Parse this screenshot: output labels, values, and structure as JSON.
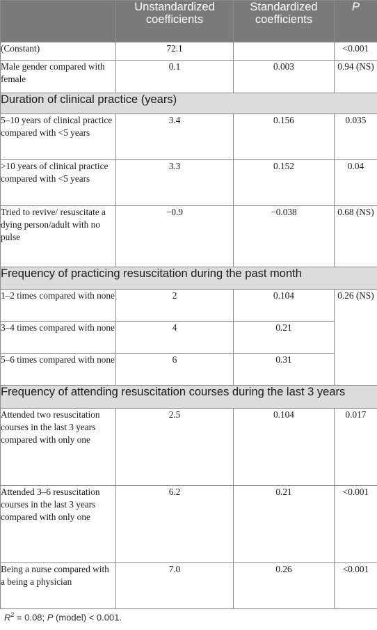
{
  "header": {
    "col1": "",
    "col2": "Unstandardized coefficients",
    "col3": "Standardized coefficients",
    "col4": "P"
  },
  "rows": {
    "constant": {
      "label": "(Constant)",
      "unstd": "72.1",
      "std": "",
      "p": "<0.001"
    },
    "male": {
      "label": "Male gender compared with female",
      "unstd": "0.1",
      "std": "0.003",
      "p": "0.94 (NS)"
    },
    "sec_duration": "Duration of clinical practice (years)",
    "dur_5_10": {
      "label": "5–10 years of clinical practice compared with <5 years",
      "unstd": "3.4",
      "std": "0.156",
      "p": "0.035"
    },
    "dur_gt10": {
      "label": ">10 years of clinical practice compared with <5 years",
      "unstd": "3.3",
      "std": "0.152",
      "p": "0.04"
    },
    "tried": {
      "label": "Tried to revive/ resuscitate a dying person/adult with no pulse",
      "unstd": "−0.9",
      "std": "−0.038",
      "p": "0.68 (NS)"
    },
    "sec_freq_practice": "Frequency of practicing resuscitation during the past month",
    "f_1_2": {
      "label": "1–2 times compared with none",
      "unstd": "2",
      "std": "0.104"
    },
    "f_3_4": {
      "label": "3–4 times compared with none",
      "unstd": "4",
      "std": "0.21"
    },
    "f_5_6": {
      "label": "5–6 times compared with none",
      "unstd": "6",
      "std": "0.31"
    },
    "freq_p": "0.26 (NS)",
    "sec_courses": "Frequency of attending resuscitation courses during the last 3 years",
    "c_two": {
      "label": "Attended two resuscitation courses in the last 3 years compared with only one",
      "unstd": "2.5",
      "std": "0.104",
      "p": "0.017"
    },
    "c_3_6": {
      "label": "Attended 3–6 resuscitation courses in the last 3 years compared with only one",
      "unstd": "6.2",
      "std": "0.21",
      "p": "<0.001"
    },
    "nurse": {
      "label": "Being a nurse compared with a being a physician",
      "unstd": "7.0",
      "std": "0.26",
      "p": "<0.001"
    }
  },
  "footnote": {
    "r": "R",
    "sup": "2",
    "eq": " = 0.08; ",
    "p": "P",
    "rest": " (model) < 0.001."
  }
}
